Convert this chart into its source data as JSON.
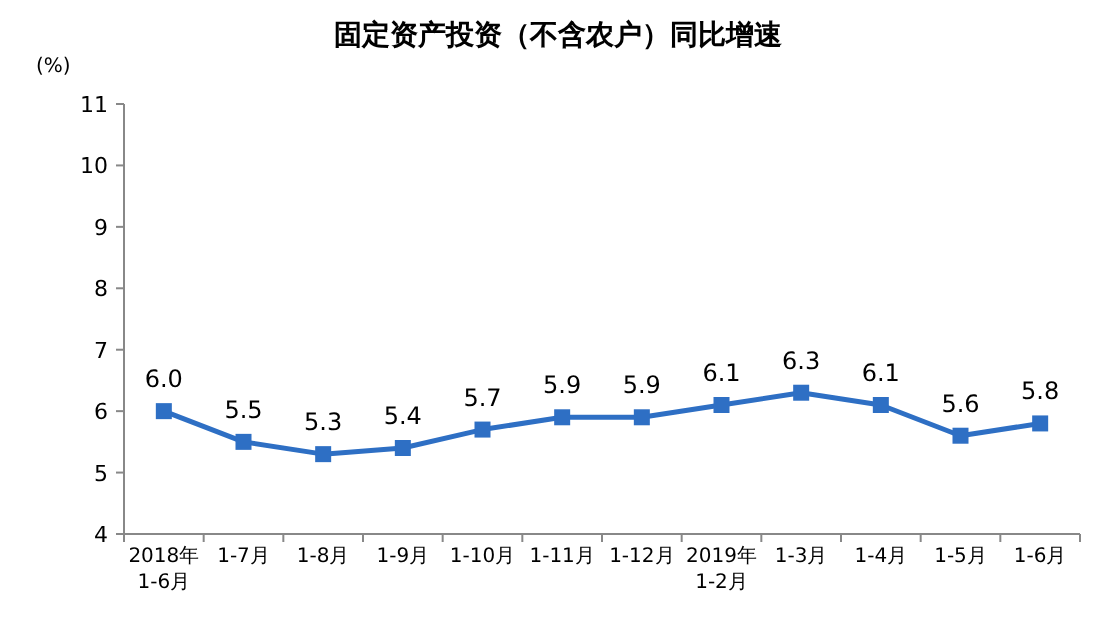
{
  "chart_data": {
    "type": "line",
    "title": "固定资产投资（不含农户）同比增速",
    "ylabel": "(%)",
    "categories": [
      "2018年\n1-6月",
      "1-7月",
      "1-8月",
      "1-9月",
      "1-10月",
      "1-11月",
      "1-12月",
      "2019年\n1-2月",
      "1-3月",
      "1-4月",
      "1-5月",
      "1-6月"
    ],
    "series": [
      {
        "color": "#2e6fc4",
        "values": [
          6.0,
          5.5,
          5.3,
          5.4,
          5.7,
          5.9,
          5.9,
          6.1,
          6.3,
          6.1,
          5.6,
          5.8
        ],
        "value_labels": [
          "6.0",
          "5.5",
          "5.3",
          "5.4",
          "5.7",
          "5.9",
          "5.9",
          "6.1",
          "6.3",
          "6.1",
          "5.6",
          "5.8"
        ]
      }
    ],
    "ylim": [
      4,
      11
    ],
    "yticks": [
      4,
      5,
      6,
      7,
      8,
      9,
      10,
      11
    ],
    "grid": false,
    "marker": "square",
    "line_style": "solid"
  }
}
